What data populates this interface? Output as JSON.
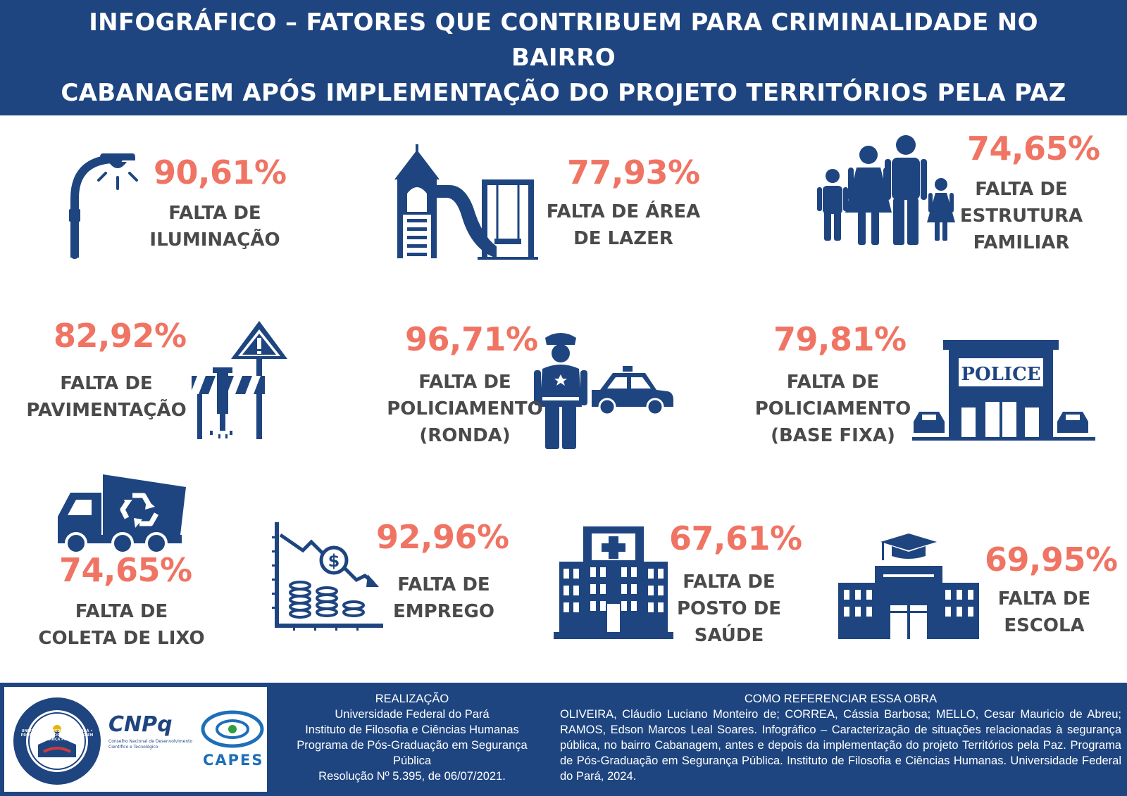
{
  "header": {
    "title_line1": "INFOGRÁFICO – FATORES QUE CONTRIBUEM PARA CRIMINALIDADE NO BAIRRO",
    "title_line2": "CABANAGEM APÓS IMPLEMENTAÇÃO DO PROJETO TERRITÓRIOS PELA PAZ"
  },
  "colors": {
    "navy": "#1e4580",
    "accent": "#f07463",
    "text": "#4a4a4a"
  },
  "items": [
    {
      "icon": "street-lamp-icon",
      "percent": "90,61%",
      "label": "FALTA DE\nILUMINAÇÃO"
    },
    {
      "icon": "playground-icon",
      "percent": "77,93%",
      "label": "FALTA DE ÁREA\nDE LAZER"
    },
    {
      "icon": "family-icon",
      "percent": "74,65%",
      "label": "FALTA DE\nESTRUTURA\nFAMILIAR"
    },
    {
      "icon": "road-work-icon",
      "percent": "82,92%",
      "label": "FALTA DE\nPAVIMENTAÇÃO"
    },
    {
      "icon": "police-officer-car-icon",
      "percent": "96,71%",
      "label": "FALTA DE\nPOLICIAMENTO\n(RONDA)"
    },
    {
      "icon": "police-station-icon",
      "percent": "79,81%",
      "label": "FALTA DE\nPOLICIAMENTO\n(BASE FIXA)",
      "sign": "POLICE"
    },
    {
      "icon": "garbage-truck-icon",
      "percent": "74,65%",
      "label": "FALTA DE\nCOLETA DE LIXO"
    },
    {
      "icon": "money-decline-icon",
      "percent": "92,96%",
      "label": "FALTA DE\nEMPREGO"
    },
    {
      "icon": "hospital-icon",
      "percent": "67,61%",
      "label": "FALTA DE\nPOSTO DE\nSAÚDE"
    },
    {
      "icon": "school-icon",
      "percent": "69,95%",
      "label": "FALTA DE\nESCOLA"
    }
  ],
  "footer": {
    "realizacao_title": "REALIZAÇÃO",
    "realizacao_lines": [
      "Universidade Federal do Pará",
      "Instituto de Filosofia e Ciências Humanas",
      "Programa de Pós-Graduação em Segurança",
      "Pública",
      "Resolução Nº 5.395, de 06/07/2021."
    ],
    "ref_title": "COMO REFERENCIAR ESSA OBRA",
    "ref_text": "OLIVEIRA, Cláudio Luciano Monteiro de; CORREA, Cássia Barbosa; MELLO, Cesar Mauricio de Abreu; RAMOS, Edson Marcos Leal Soares. Infográfico – Caracterização de situações relacionadas à segurança pública, no bairro Cabanagem, antes e depois da implementação do projeto Territórios pela Paz. Programa de Pós-Graduação em Segurança Pública. Instituto de Filosofia e Ciências Humanas. Universidade Federal do Pará, 2024.",
    "logos": {
      "ufpa_seal_text": "UNIVERSIDADE FEDERAL DO PARÁ • PROGRAMA DE PÓS-GRADUAÇÃO EM SEGURANÇA PÚBLICA",
      "cnpq": "CNPq",
      "cnpq_sub1": "Conselho Nacional de Desenvolvimento",
      "cnpq_sub2": "Científico e Tecnológico",
      "capes": "CAPES"
    }
  }
}
